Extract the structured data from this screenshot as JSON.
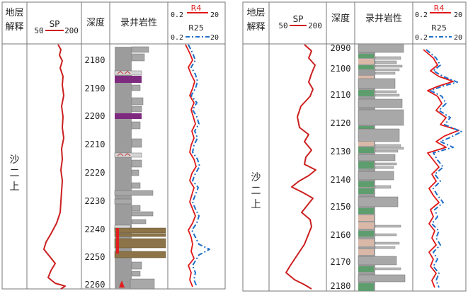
{
  "panels": [
    {
      "id": "left",
      "headers": {
        "interpretation": [
          "地层",
          "解释"
        ],
        "sp_label": "SP",
        "sp_min": "50",
        "sp_max": "200",
        "depth": "深度",
        "lithology": "录井岩性",
        "r4_label": "R4",
        "r4_min": "0.2",
        "r4_max": "20",
        "r25_label": "R25",
        "r25_min": "0.2",
        "r25_max": "20"
      },
      "formation": [
        "沙",
        "二",
        "上"
      ],
      "depth_ticks": [
        "2180",
        "2190",
        "2200",
        "2210",
        "2220",
        "2230",
        "2240",
        "2250",
        "2260"
      ]
    },
    {
      "id": "right",
      "headers": {
        "interpretation": [
          "地层",
          "解释"
        ],
        "sp_label": "SP",
        "sp_min": "50",
        "sp_max": "200",
        "depth": "深度",
        "lithology": "录井岩性",
        "r4_label": "R4",
        "r4_min": "0.2",
        "r4_max": "20",
        "r25_label": "R25",
        "r25_min": "0.2",
        "r25_max": "20"
      },
      "formation": [
        "沙",
        "二",
        "上"
      ],
      "depth_ticks": [
        "2090",
        "2100",
        "2110",
        "2120",
        "2130",
        "2140",
        "2150",
        "2160",
        "2170",
        "2180"
      ]
    }
  ],
  "colors": {
    "sp_curve": "#cc1f1f",
    "r4_curve": "#e01818",
    "r25_curve": "#1f6fc8",
    "sandstone": "#a6a6a6",
    "mudstone": "#8e8e8e",
    "purple_mudstone": "#7e2a7e",
    "brown_sand": "#8c7448",
    "green_mudstone": "#5e9e6e",
    "pink_mudstone": "#d9b8a8",
    "grid": "#7a7a7a"
  }
}
